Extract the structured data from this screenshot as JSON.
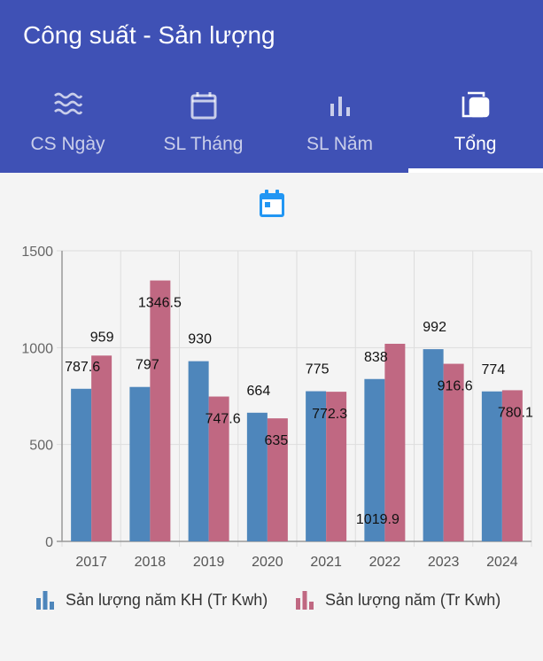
{
  "app": {
    "title": "Công suất - Sản lượng"
  },
  "tabs": [
    {
      "label": "CS Ngày",
      "icon": "waves-icon",
      "active": false
    },
    {
      "label": "SL Tháng",
      "icon": "calendar-icon",
      "active": false
    },
    {
      "label": "SL Năm",
      "icon": "bar-chart-icon",
      "active": false
    },
    {
      "label": "Tổng",
      "icon": "library-icon",
      "active": true
    }
  ],
  "date_picker": {
    "icon": "calendar-icon",
    "color": "#2196f3"
  },
  "colors": {
    "primary": "#3f51b5",
    "series_plan": "#4e86bb",
    "series_actual": "#c06882"
  },
  "chart_data": {
    "type": "bar",
    "categories": [
      "2017",
      "2018",
      "2019",
      "2020",
      "2021",
      "2022",
      "2023",
      "2024"
    ],
    "series": [
      {
        "name": "Sản lượng năm KH (Tr Kwh)",
        "values": [
          787.6,
          797,
          930,
          664,
          775,
          838,
          992,
          774
        ],
        "labels": [
          "787.6",
          "797",
          "930",
          "664",
          "775",
          "838",
          "992",
          "774"
        ]
      },
      {
        "name": "Sản lượng năm (Tr Kwh)",
        "values": [
          959,
          1346.5,
          747.6,
          635,
          772.3,
          1019.9,
          916.6,
          780.1
        ],
        "labels": [
          "959",
          "1346.5",
          "747.6",
          "635",
          "772.3",
          "1019.9",
          "916.6",
          "780.1"
        ]
      }
    ],
    "ylim": [
      0,
      1500
    ],
    "yticks": [
      "0",
      "500",
      "1000",
      "1500"
    ],
    "grid": true,
    "legend_position": "bottom"
  }
}
